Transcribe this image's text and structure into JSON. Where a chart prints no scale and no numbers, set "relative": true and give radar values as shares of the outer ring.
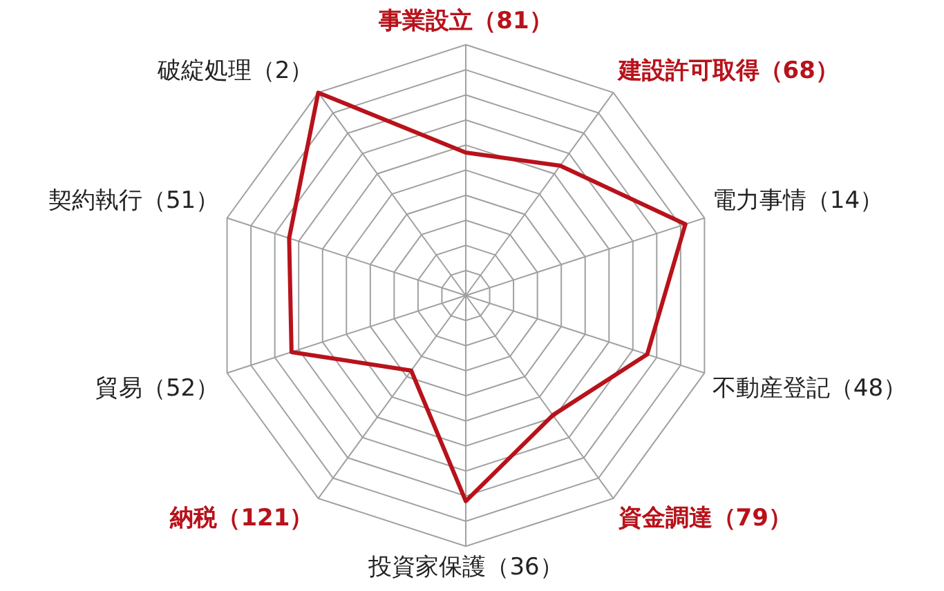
{
  "chart_data": {
    "type": "radar",
    "relative": true,
    "legend": false,
    "marker": "none",
    "grid": true,
    "categories": [
      "事業設立（81）",
      "建設許可取得（68）",
      "電力事情（14）",
      "不動産登記（48）",
      "資金調達（79）",
      "投資家保護（36）",
      "納税（121）",
      "貿易（52）",
      "契約執行（51）",
      "破綻処理（2）"
    ],
    "colors": [
      "#b8121b",
      "#b8121b",
      "#222222",
      "#222222",
      "#b8121b",
      "#222222",
      "#b8121b",
      "#222222",
      "#222222",
      "#222222"
    ],
    "series": [
      {
        "color": "#b8121b",
        "values": [
          0.57,
          0.64,
          0.92,
          0.76,
          0.59,
          0.82,
          0.37,
          0.73,
          0.74,
          1
        ]
      }
    ]
  }
}
